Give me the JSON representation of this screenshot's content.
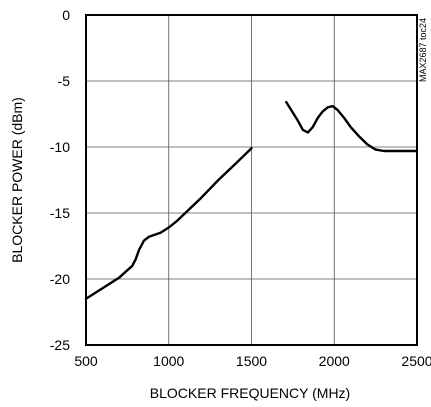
{
  "chart_data": {
    "type": "line",
    "title": "",
    "xlabel": "BLOCKER FREQUENCY (MHz)",
    "ylabel": "BLOCKER POWER (dBm)",
    "xlim": [
      500,
      2500
    ],
    "ylim": [
      -25,
      0
    ],
    "x_ticks": [
      "500",
      "1000",
      "1500",
      "2000",
      "2500"
    ],
    "y_ticks": [
      "0",
      "-5",
      "-10",
      "-15",
      "-20",
      "-25"
    ],
    "grid": true,
    "legend": "none",
    "line_color": "#000000",
    "series": [
      {
        "x": [
          500,
          600,
          700,
          780,
          800,
          820,
          850,
          880,
          950,
          1000,
          1050,
          1100,
          1200,
          1300,
          1400,
          1500
        ],
        "y": [
          -21.5,
          -20.7,
          -19.9,
          -19.0,
          -18.5,
          -17.8,
          -17.1,
          -16.8,
          -16.5,
          -16.1,
          -15.6,
          -15.0,
          -13.8,
          -12.5,
          -11.3,
          -10.1
        ]
      },
      {
        "x": [
          1710,
          1750,
          1780,
          1810,
          1840,
          1870,
          1900,
          1930,
          1960,
          1990,
          2020,
          2060,
          2100,
          2150,
          2200,
          2250,
          2300,
          2350,
          2400,
          2500
        ],
        "y": [
          -6.6,
          -7.4,
          -8.0,
          -8.7,
          -8.9,
          -8.5,
          -7.8,
          -7.3,
          -7.0,
          -6.9,
          -7.2,
          -7.8,
          -8.5,
          -9.2,
          -9.8,
          -10.2,
          -10.3,
          -10.3,
          -10.3,
          -10.3
        ]
      }
    ]
  },
  "side_mark": "MAX2687 toc24"
}
